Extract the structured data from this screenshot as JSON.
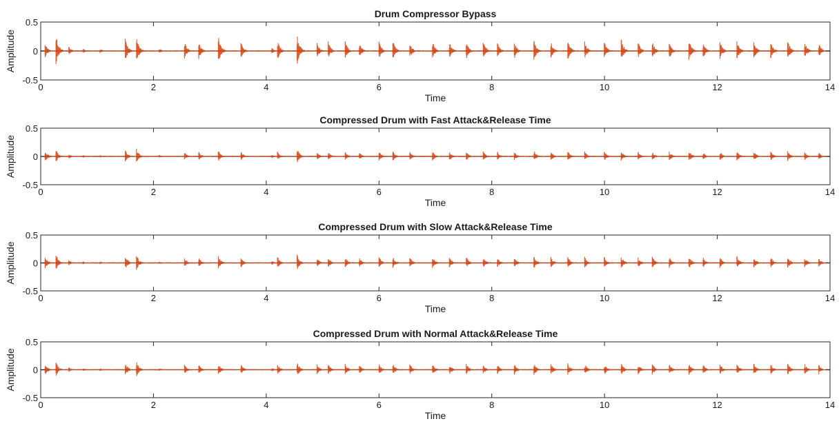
{
  "chart_data": [
    {
      "type": "line",
      "title": "Drum Compressor Bypass",
      "xlabel": "Time",
      "ylabel": "Amplitude",
      "xlim": [
        0,
        14
      ],
      "ylim": [
        -0.5,
        0.5
      ],
      "xticks": [
        "0",
        "2",
        "4",
        "6",
        "8",
        "10",
        "12",
        "14"
      ],
      "yticks": [
        "0.5",
        "0",
        "-0.5"
      ],
      "grid": false,
      "transients": [
        {
          "t": 0.08,
          "a": 0.13
        },
        {
          "t": 0.27,
          "a": 0.3
        },
        {
          "t": 0.5,
          "a": 0.08
        },
        {
          "t": 0.75,
          "a": 0.05
        },
        {
          "t": 1.05,
          "a": 0.05
        },
        {
          "t": 1.5,
          "a": 0.22
        },
        {
          "t": 1.7,
          "a": 0.25
        },
        {
          "t": 2.1,
          "a": 0.05
        },
        {
          "t": 2.55,
          "a": 0.17
        },
        {
          "t": 2.8,
          "a": 0.18
        },
        {
          "t": 3.15,
          "a": 0.27
        },
        {
          "t": 3.55,
          "a": 0.17
        },
        {
          "t": 4.1,
          "a": 0.06
        },
        {
          "t": 4.2,
          "a": 0.2
        },
        {
          "t": 4.55,
          "a": 0.31
        },
        {
          "t": 4.9,
          "a": 0.15
        },
        {
          "t": 5.1,
          "a": 0.17
        },
        {
          "t": 5.4,
          "a": 0.17
        },
        {
          "t": 5.65,
          "a": 0.15
        },
        {
          "t": 6.0,
          "a": 0.18
        },
        {
          "t": 6.25,
          "a": 0.17
        },
        {
          "t": 6.55,
          "a": 0.15
        },
        {
          "t": 6.95,
          "a": 0.17
        },
        {
          "t": 7.25,
          "a": 0.17
        },
        {
          "t": 7.55,
          "a": 0.17
        },
        {
          "t": 7.85,
          "a": 0.17
        },
        {
          "t": 8.1,
          "a": 0.15
        },
        {
          "t": 8.4,
          "a": 0.17
        },
        {
          "t": 8.75,
          "a": 0.21
        },
        {
          "t": 9.05,
          "a": 0.17
        },
        {
          "t": 9.35,
          "a": 0.2
        },
        {
          "t": 9.65,
          "a": 0.17
        },
        {
          "t": 10.0,
          "a": 0.16
        },
        {
          "t": 10.3,
          "a": 0.2
        },
        {
          "t": 10.6,
          "a": 0.15
        },
        {
          "t": 10.85,
          "a": 0.17
        },
        {
          "t": 11.15,
          "a": 0.17
        },
        {
          "t": 11.5,
          "a": 0.2
        },
        {
          "t": 11.75,
          "a": 0.15
        },
        {
          "t": 12.05,
          "a": 0.17
        },
        {
          "t": 12.35,
          "a": 0.2
        },
        {
          "t": 12.65,
          "a": 0.17
        },
        {
          "t": 12.95,
          "a": 0.17
        },
        {
          "t": 13.25,
          "a": 0.2
        },
        {
          "t": 13.55,
          "a": 0.17
        },
        {
          "t": 13.8,
          "a": 0.15
        }
      ]
    },
    {
      "type": "line",
      "title": "Compressed Drum with Fast Attack&Release Time",
      "xlabel": "Time",
      "ylabel": "Amplitude",
      "xlim": [
        0,
        14
      ],
      "ylim": [
        -0.5,
        0.5
      ],
      "xticks": [
        "0",
        "2",
        "4",
        "6",
        "8",
        "10",
        "12",
        "14"
      ],
      "yticks": [
        "0.5",
        "0",
        "-0.5"
      ],
      "grid": false,
      "transients": [
        {
          "t": 0.08,
          "a": 0.12
        },
        {
          "t": 0.27,
          "a": 0.13
        },
        {
          "t": 0.5,
          "a": 0.05
        },
        {
          "t": 0.75,
          "a": 0.03
        },
        {
          "t": 1.05,
          "a": 0.03
        },
        {
          "t": 1.5,
          "a": 0.12
        },
        {
          "t": 1.7,
          "a": 0.14
        },
        {
          "t": 2.1,
          "a": 0.03
        },
        {
          "t": 2.55,
          "a": 0.08
        },
        {
          "t": 2.8,
          "a": 0.09
        },
        {
          "t": 3.15,
          "a": 0.11
        },
        {
          "t": 3.55,
          "a": 0.1
        },
        {
          "t": 4.1,
          "a": 0.04
        },
        {
          "t": 4.2,
          "a": 0.09
        },
        {
          "t": 4.55,
          "a": 0.14
        },
        {
          "t": 4.9,
          "a": 0.08
        },
        {
          "t": 5.1,
          "a": 0.09
        },
        {
          "t": 5.4,
          "a": 0.09
        },
        {
          "t": 5.65,
          "a": 0.08
        },
        {
          "t": 6.0,
          "a": 0.1
        },
        {
          "t": 6.25,
          "a": 0.09
        },
        {
          "t": 6.55,
          "a": 0.08
        },
        {
          "t": 6.95,
          "a": 0.1
        },
        {
          "t": 7.25,
          "a": 0.09
        },
        {
          "t": 7.55,
          "a": 0.09
        },
        {
          "t": 7.85,
          "a": 0.09
        },
        {
          "t": 8.1,
          "a": 0.08
        },
        {
          "t": 8.4,
          "a": 0.09
        },
        {
          "t": 8.75,
          "a": 0.11
        },
        {
          "t": 9.05,
          "a": 0.09
        },
        {
          "t": 9.35,
          "a": 0.1
        },
        {
          "t": 9.65,
          "a": 0.09
        },
        {
          "t": 10.0,
          "a": 0.09
        },
        {
          "t": 10.3,
          "a": 0.1
        },
        {
          "t": 10.6,
          "a": 0.08
        },
        {
          "t": 10.85,
          "a": 0.09
        },
        {
          "t": 11.15,
          "a": 0.09
        },
        {
          "t": 11.5,
          "a": 0.11
        },
        {
          "t": 11.75,
          "a": 0.08
        },
        {
          "t": 12.05,
          "a": 0.09
        },
        {
          "t": 12.35,
          "a": 0.1
        },
        {
          "t": 12.65,
          "a": 0.09
        },
        {
          "t": 12.95,
          "a": 0.09
        },
        {
          "t": 13.25,
          "a": 0.1
        },
        {
          "t": 13.55,
          "a": 0.09
        },
        {
          "t": 13.8,
          "a": 0.08
        }
      ]
    },
    {
      "type": "line",
      "title": "Compressed Drum with Slow Attack&Release Time",
      "xlabel": "Time",
      "ylabel": "Amplitude",
      "xlim": [
        0,
        14
      ],
      "ylim": [
        -0.5,
        0.5
      ],
      "xticks": [
        "0",
        "2",
        "4",
        "6",
        "8",
        "10",
        "12",
        "14"
      ],
      "yticks": [
        "0.5",
        "0",
        "-0.5"
      ],
      "grid": false,
      "transients": [
        {
          "t": 0.08,
          "a": 0.12
        },
        {
          "t": 0.27,
          "a": 0.17
        },
        {
          "t": 0.5,
          "a": 0.05
        },
        {
          "t": 0.75,
          "a": 0.03
        },
        {
          "t": 1.05,
          "a": 0.03
        },
        {
          "t": 1.5,
          "a": 0.15
        },
        {
          "t": 1.7,
          "a": 0.16
        },
        {
          "t": 2.1,
          "a": 0.03
        },
        {
          "t": 2.55,
          "a": 0.1
        },
        {
          "t": 2.8,
          "a": 0.11
        },
        {
          "t": 3.15,
          "a": 0.13
        },
        {
          "t": 3.55,
          "a": 0.11
        },
        {
          "t": 4.1,
          "a": 0.04
        },
        {
          "t": 4.2,
          "a": 0.12
        },
        {
          "t": 4.55,
          "a": 0.15
        },
        {
          "t": 4.9,
          "a": 0.1
        },
        {
          "t": 5.1,
          "a": 0.11
        },
        {
          "t": 5.4,
          "a": 0.11
        },
        {
          "t": 5.65,
          "a": 0.1
        },
        {
          "t": 6.0,
          "a": 0.12
        },
        {
          "t": 6.25,
          "a": 0.11
        },
        {
          "t": 6.55,
          "a": 0.1
        },
        {
          "t": 6.95,
          "a": 0.12
        },
        {
          "t": 7.25,
          "a": 0.11
        },
        {
          "t": 7.55,
          "a": 0.11
        },
        {
          "t": 7.85,
          "a": 0.11
        },
        {
          "t": 8.1,
          "a": 0.1
        },
        {
          "t": 8.4,
          "a": 0.11
        },
        {
          "t": 8.75,
          "a": 0.13
        },
        {
          "t": 9.05,
          "a": 0.11
        },
        {
          "t": 9.35,
          "a": 0.12
        },
        {
          "t": 9.65,
          "a": 0.11
        },
        {
          "t": 10.0,
          "a": 0.11
        },
        {
          "t": 10.3,
          "a": 0.12
        },
        {
          "t": 10.6,
          "a": 0.1
        },
        {
          "t": 10.85,
          "a": 0.11
        },
        {
          "t": 11.15,
          "a": 0.11
        },
        {
          "t": 11.5,
          "a": 0.13
        },
        {
          "t": 11.75,
          "a": 0.1
        },
        {
          "t": 12.05,
          "a": 0.11
        },
        {
          "t": 12.35,
          "a": 0.12
        },
        {
          "t": 12.65,
          "a": 0.11
        },
        {
          "t": 12.95,
          "a": 0.11
        },
        {
          "t": 13.25,
          "a": 0.12
        },
        {
          "t": 13.55,
          "a": 0.11
        },
        {
          "t": 13.8,
          "a": 0.1
        }
      ]
    },
    {
      "type": "line",
      "title": "Compressed Drum with Normal Attack&Release Time",
      "xlabel": "Time",
      "ylabel": "Amplitude",
      "xlim": [
        0,
        14
      ],
      "ylim": [
        -0.5,
        0.5
      ],
      "xticks": [
        "0",
        "2",
        "4",
        "6",
        "8",
        "10",
        "12",
        "14"
      ],
      "yticks": [
        "0.5",
        "0",
        "-0.5"
      ],
      "grid": false,
      "transients": [
        {
          "t": 0.08,
          "a": 0.12
        },
        {
          "t": 0.27,
          "a": 0.15
        },
        {
          "t": 0.5,
          "a": 0.05
        },
        {
          "t": 0.75,
          "a": 0.03
        },
        {
          "t": 1.05,
          "a": 0.03
        },
        {
          "t": 1.5,
          "a": 0.14
        },
        {
          "t": 1.7,
          "a": 0.16
        },
        {
          "t": 2.1,
          "a": 0.03
        },
        {
          "t": 2.55,
          "a": 0.1
        },
        {
          "t": 2.8,
          "a": 0.11
        },
        {
          "t": 3.15,
          "a": 0.12
        },
        {
          "t": 3.55,
          "a": 0.11
        },
        {
          "t": 4.1,
          "a": 0.04
        },
        {
          "t": 4.2,
          "a": 0.11
        },
        {
          "t": 4.55,
          "a": 0.14
        },
        {
          "t": 4.9,
          "a": 0.1
        },
        {
          "t": 5.1,
          "a": 0.11
        },
        {
          "t": 5.4,
          "a": 0.11
        },
        {
          "t": 5.65,
          "a": 0.1
        },
        {
          "t": 6.0,
          "a": 0.11
        },
        {
          "t": 6.25,
          "a": 0.11
        },
        {
          "t": 6.55,
          "a": 0.1
        },
        {
          "t": 6.95,
          "a": 0.11
        },
        {
          "t": 7.25,
          "a": 0.11
        },
        {
          "t": 7.55,
          "a": 0.11
        },
        {
          "t": 7.85,
          "a": 0.11
        },
        {
          "t": 8.1,
          "a": 0.1
        },
        {
          "t": 8.4,
          "a": 0.11
        },
        {
          "t": 8.75,
          "a": 0.12
        },
        {
          "t": 9.05,
          "a": 0.11
        },
        {
          "t": 9.35,
          "a": 0.12
        },
        {
          "t": 9.65,
          "a": 0.11
        },
        {
          "t": 10.0,
          "a": 0.11
        },
        {
          "t": 10.3,
          "a": 0.12
        },
        {
          "t": 10.6,
          "a": 0.1
        },
        {
          "t": 10.85,
          "a": 0.11
        },
        {
          "t": 11.15,
          "a": 0.11
        },
        {
          "t": 11.5,
          "a": 0.12
        },
        {
          "t": 11.75,
          "a": 0.1
        },
        {
          "t": 12.05,
          "a": 0.11
        },
        {
          "t": 12.35,
          "a": 0.12
        },
        {
          "t": 12.65,
          "a": 0.11
        },
        {
          "t": 12.95,
          "a": 0.11
        },
        {
          "t": 13.25,
          "a": 0.12
        },
        {
          "t": 13.55,
          "a": 0.11
        },
        {
          "t": 13.8,
          "a": 0.1
        }
      ]
    }
  ],
  "colors": {
    "waveform": "#e05a2b",
    "waveform_dark": "#b0441f",
    "axis": "#262626",
    "background": "#ffffff"
  }
}
